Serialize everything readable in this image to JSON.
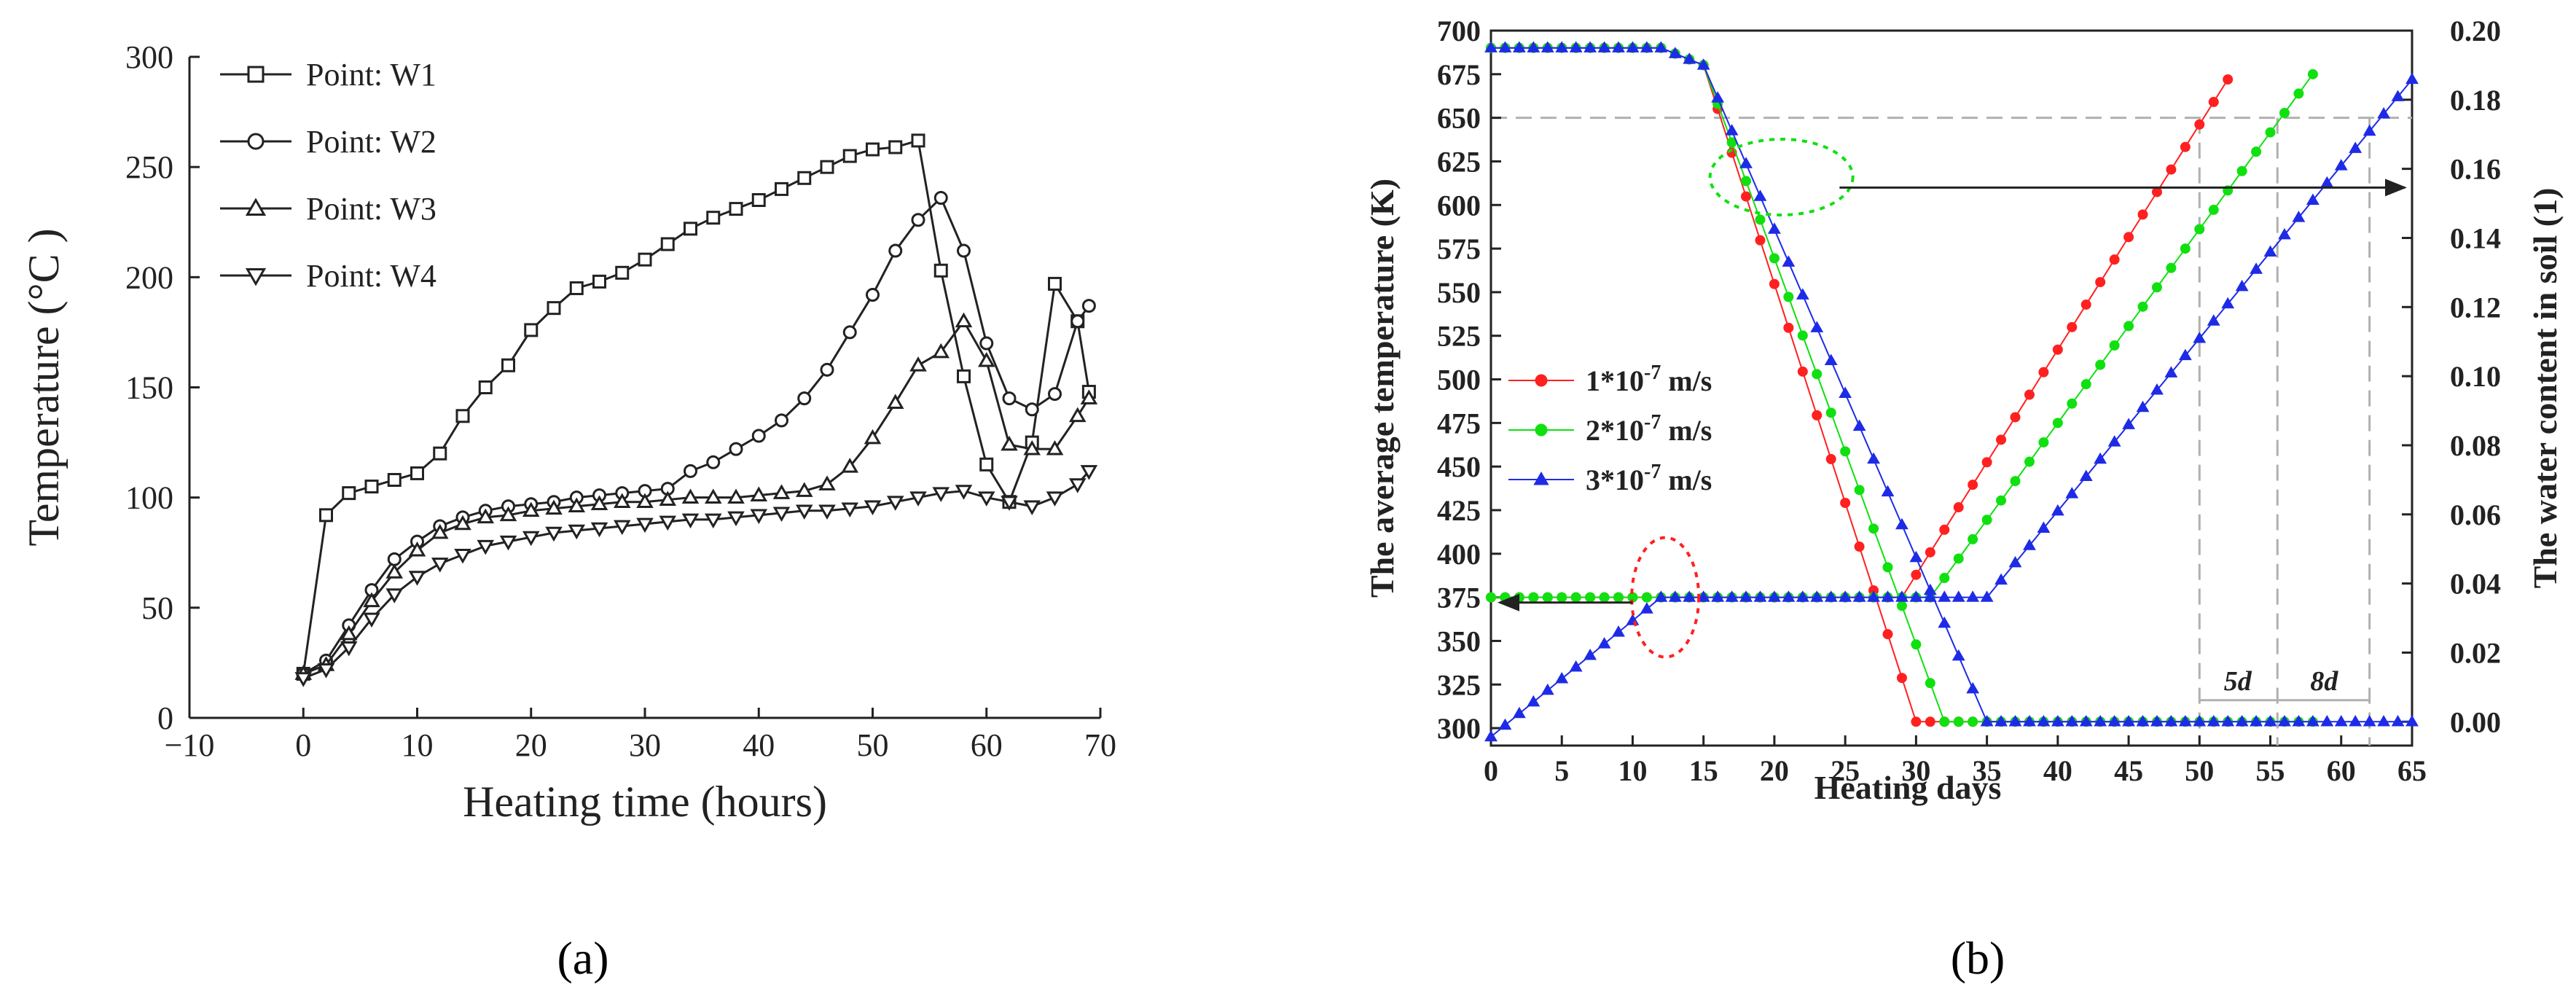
{
  "panel_labels": {
    "a": "(a)",
    "b": "(b)"
  },
  "chart_data": [
    {
      "id": "a",
      "type": "line",
      "xlabel": "Heating time (hours)",
      "ylabel": "Temperature (°C )",
      "xlim": [
        -10,
        70
      ],
      "ylim": [
        0,
        300
      ],
      "xticks": [
        "−10",
        "0",
        "10",
        "20",
        "30",
        "40",
        "50",
        "60",
        "70"
      ],
      "yticks": [
        "0",
        "50",
        "100",
        "150",
        "200",
        "250",
        "300"
      ],
      "legend_position": "top-left",
      "series": [
        {
          "name": "Point: W1",
          "marker": "square",
          "x": [
            0,
            2,
            4,
            6,
            8,
            10,
            12,
            14,
            16,
            18,
            20,
            22,
            24,
            26,
            28,
            30,
            32,
            34,
            36,
            38,
            40,
            42,
            44,
            46,
            48,
            50,
            52,
            54,
            56,
            58,
            60,
            62,
            64,
            66,
            68,
            69
          ],
          "y": [
            20,
            92,
            102,
            105,
            108,
            111,
            120,
            137,
            150,
            160,
            176,
            186,
            195,
            198,
            202,
            208,
            215,
            222,
            227,
            231,
            235,
            240,
            245,
            250,
            255,
            258,
            259,
            262,
            203,
            155,
            115,
            98,
            125,
            197,
            180,
            148
          ]
        },
        {
          "name": "Point: W2",
          "marker": "circle",
          "x": [
            0,
            2,
            4,
            6,
            8,
            10,
            12,
            14,
            16,
            18,
            20,
            22,
            24,
            26,
            28,
            30,
            32,
            34,
            36,
            38,
            40,
            42,
            44,
            46,
            48,
            50,
            52,
            54,
            56,
            58,
            60,
            62,
            64,
            66,
            68,
            69
          ],
          "y": [
            20,
            26,
            42,
            58,
            72,
            80,
            87,
            91,
            94,
            96,
            97,
            98,
            100,
            101,
            102,
            103,
            104,
            112,
            116,
            122,
            128,
            135,
            145,
            158,
            175,
            192,
            212,
            226,
            236,
            212,
            170,
            145,
            140,
            147,
            180,
            187
          ]
        },
        {
          "name": "Point: W3",
          "marker": "triangle-up",
          "x": [
            0,
            2,
            4,
            6,
            8,
            10,
            12,
            14,
            16,
            18,
            20,
            22,
            24,
            26,
            28,
            30,
            32,
            34,
            36,
            38,
            40,
            42,
            44,
            46,
            48,
            50,
            52,
            54,
            56,
            58,
            60,
            62,
            64,
            66,
            68,
            69
          ],
          "y": [
            20,
            24,
            38,
            53,
            66,
            76,
            84,
            88,
            91,
            92,
            94,
            95,
            96,
            97,
            98,
            98,
            99,
            100,
            100,
            100,
            101,
            102,
            103,
            106,
            114,
            127,
            143,
            160,
            166,
            180,
            162,
            124,
            122,
            122,
            137,
            145
          ]
        },
        {
          "name": "Point: W4",
          "marker": "triangle-down",
          "x": [
            0,
            2,
            4,
            6,
            8,
            10,
            12,
            14,
            16,
            18,
            20,
            22,
            24,
            26,
            28,
            30,
            32,
            34,
            36,
            38,
            40,
            42,
            44,
            46,
            48,
            50,
            52,
            54,
            56,
            58,
            60,
            62,
            64,
            66,
            68,
            69
          ],
          "y": [
            18,
            22,
            32,
            45,
            56,
            64,
            70,
            74,
            78,
            80,
            82,
            84,
            85,
            86,
            87,
            88,
            89,
            90,
            90,
            91,
            92,
            93,
            94,
            94,
            95,
            96,
            98,
            100,
            102,
            103,
            100,
            98,
            96,
            100,
            106,
            112
          ]
        }
      ]
    },
    {
      "id": "b",
      "type": "scatter",
      "xlabel": "Heating days",
      "ylabel": "The average temperature (K)",
      "y2label": "The water content in soil (1)",
      "xlim": [
        0,
        65
      ],
      "ylim": [
        290,
        700
      ],
      "y2lim": [
        -0.0069,
        0.2
      ],
      "xticks": [
        "0",
        "5",
        "10",
        "15",
        "20",
        "25",
        "30",
        "35",
        "40",
        "45",
        "50",
        "55",
        "60",
        "65"
      ],
      "yticks": [
        "300",
        "325",
        "350",
        "375",
        "400",
        "425",
        "450",
        "475",
        "500",
        "525",
        "550",
        "575",
        "600",
        "625",
        "650",
        "675",
        "700"
      ],
      "y2ticks": [
        "0.00",
        "0.02",
        "0.04",
        "0.06",
        "0.08",
        "0.10",
        "0.12",
        "0.14",
        "0.16",
        "0.18",
        "0.20"
      ],
      "legend_position": "center-left",
      "reference_line_y": 650,
      "annotations": [
        "5d",
        "8d"
      ],
      "series": [
        {
          "name": "1*10-7 m/s",
          "name_base": "1*10",
          "name_exp": "-7",
          "name_unit": " m/s",
          "color": "#ff2020",
          "marker": "circle",
          "temperature": {
            "x": [
              0,
              13,
              29,
              52
            ],
            "y": [
              375,
              375,
              375,
              672
            ]
          },
          "water_content": {
            "x": [
              0,
              12,
              15,
              30,
              52
            ],
            "y": [
              0.195,
              0.195,
              0.19,
              0.0,
              0.0
            ]
          }
        },
        {
          "name": "2*10-7 m/s",
          "name_base": "2*10",
          "name_exp": "-7",
          "name_unit": " m/s",
          "color": "#10e010",
          "marker": "circle",
          "temperature": {
            "x": [
              0,
              13,
              31,
              58
            ],
            "y": [
              375,
              375,
              375,
              675
            ]
          },
          "water_content": {
            "x": [
              0,
              12,
              15,
              32,
              58
            ],
            "y": [
              0.195,
              0.195,
              0.19,
              0.0,
              0.0
            ]
          }
        },
        {
          "name": "3*10-7 m/s",
          "name_base": "3*10",
          "name_exp": "-7",
          "name_unit": " m/s",
          "color": "#1e2be6",
          "marker": "triangle",
          "temperature": {
            "x": [
              0,
              12,
              13,
              35,
              65
            ],
            "y": [
              295,
              375,
              375,
              375,
              672
            ]
          },
          "water_content": {
            "x": [
              0,
              12,
              15,
              35,
              65
            ],
            "y": [
              0.195,
              0.195,
              0.19,
              0.0,
              0.0
            ]
          }
        }
      ]
    }
  ]
}
